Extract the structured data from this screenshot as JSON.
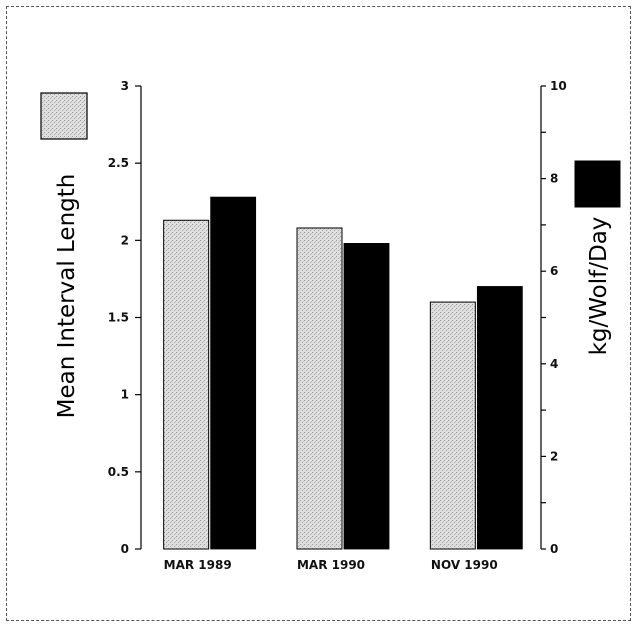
{
  "chart_data": {
    "type": "bar",
    "title": "",
    "categories": [
      "MAR 1989",
      "MAR 1990",
      "NOV 1990"
    ],
    "series": [
      {
        "axis": "left",
        "color": "#d4d4d4",
        "pattern": "stippled",
        "values": [
          2.13,
          2.08,
          1.6
        ]
      },
      {
        "axis": "right",
        "color": "#000000",
        "pattern": "solid",
        "values": [
          7.6,
          6.6,
          5.67
        ]
      }
    ],
    "left_axis": {
      "label": "Mean Interval Length",
      "ylim": [
        0,
        3
      ],
      "ticks": [
        "0",
        "0.5",
        "1",
        "1.5",
        "2",
        "2.5",
        "3"
      ]
    },
    "right_axis": {
      "label": "kg/Wolf/Day",
      "ylim": [
        0,
        10
      ],
      "ticks": [
        "0",
        "2",
        "4",
        "6",
        "8",
        "10"
      ]
    },
    "legend": "swatches beside each axis (stippled = left axis, black = right axis)",
    "grid": false
  }
}
